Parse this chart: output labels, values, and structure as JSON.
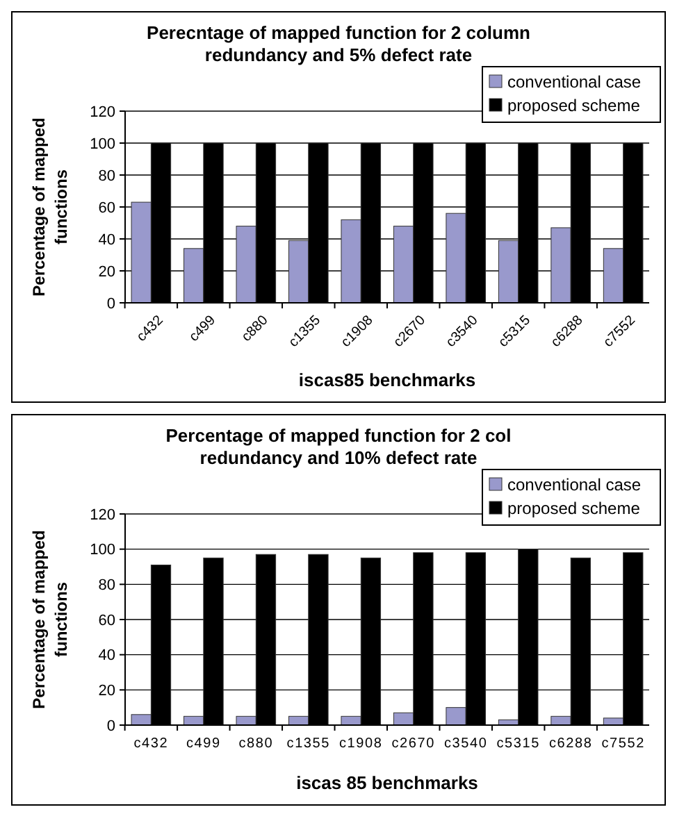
{
  "chart_data": [
    {
      "type": "bar",
      "title": "Perecntage of mapped function for 2 column redundancy and 5% defect rate",
      "xlabel": "iscas85 benchmarks",
      "ylabel": "Percentage of mapped functions",
      "categories": [
        "c432",
        "c499",
        "c880",
        "c1355",
        "c1908",
        "c2670",
        "c3540",
        "c5315",
        "c6288",
        "c7552"
      ],
      "series": [
        {
          "name": "conventional case",
          "color": "#9999cc",
          "values": [
            63,
            34,
            48,
            39,
            52,
            48,
            56,
            39,
            47,
            34
          ]
        },
        {
          "name": "proposed scheme",
          "color": "#000000",
          "values": [
            100,
            100,
            100,
            100,
            100,
            100,
            100,
            100,
            100,
            100
          ]
        }
      ],
      "ylim": [
        0,
        120
      ],
      "yticks": [
        0,
        20,
        40,
        60,
        80,
        100,
        120
      ],
      "grid": "y",
      "legend": "top right"
    },
    {
      "type": "bar",
      "title": "Percentage of mapped function for 2 col redundancy and 10% defect rate",
      "xlabel": "iscas 85 benchmarks",
      "ylabel": "Percentage of mapped functions",
      "categories": [
        "c432",
        "c499",
        "c880",
        "c1355",
        "c1908",
        "c2670",
        "c3540",
        "c5315",
        "c6288",
        "c7552"
      ],
      "series": [
        {
          "name": "conventional case",
          "color": "#9999cc",
          "values": [
            6,
            5,
            5,
            5,
            5,
            7,
            10,
            3,
            5,
            4
          ]
        },
        {
          "name": "proposed scheme",
          "color": "#000000",
          "values": [
            91,
            95,
            97,
            97,
            95,
            98,
            98,
            100,
            95,
            98
          ]
        }
      ],
      "ylim": [
        0,
        120
      ],
      "yticks": [
        0,
        20,
        40,
        60,
        80,
        100,
        120
      ],
      "grid": "y",
      "legend": "top right"
    }
  ]
}
